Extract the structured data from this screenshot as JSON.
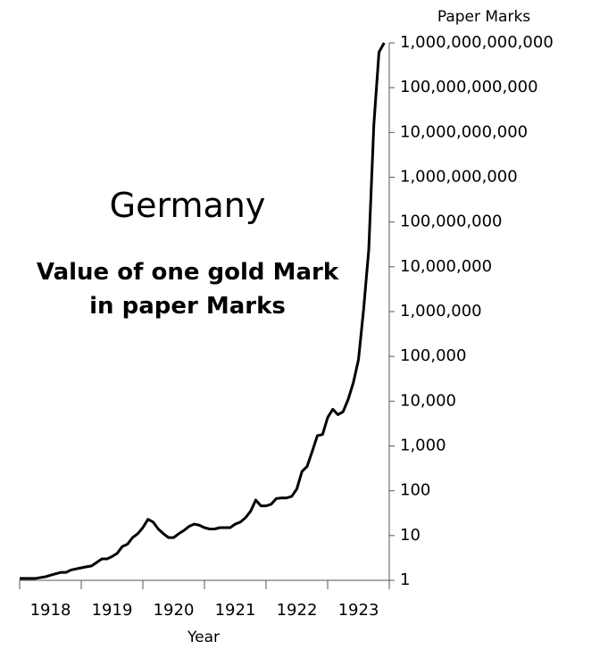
{
  "chart_data": {
    "type": "line",
    "title": "Germany",
    "subtitle": "Value of one gold Mark in paper Marks",
    "x_label": "Year",
    "y_label": "Paper Marks",
    "log_scale": true,
    "color": "#000000",
    "xlim": [
      1918,
      1924
    ],
    "xticks": [
      {
        "value": 1918.5,
        "label": "1918"
      },
      {
        "value": 1919.5,
        "label": "1919"
      },
      {
        "value": 1920.5,
        "label": "1920"
      },
      {
        "value": 1921.5,
        "label": "1921"
      },
      {
        "value": 1922.5,
        "label": "1922"
      },
      {
        "value": 1923.5,
        "label": "1923"
      }
    ],
    "ylim": [
      1,
      1000000000000
    ],
    "yticks": [
      1,
      10,
      100,
      {
        "value": 1000,
        "label": "1,000"
      },
      {
        "value": 10000,
        "label": "10,000"
      },
      {
        "value": 100000,
        "label": "100,000"
      },
      {
        "value": 1000000,
        "label": "1,000,000"
      },
      {
        "value": 10000000,
        "label": "10,000,000"
      },
      {
        "value": 100000000,
        "label": "100,000,000"
      },
      {
        "value": 1000000000,
        "label": "1,000,000,000"
      },
      {
        "value": 10000000000,
        "label": "10,000,000,000"
      },
      {
        "value": 100000000000,
        "label": "100,000,000,000"
      },
      {
        "value": 1000000000000,
        "label": "1,000,000,000,000"
      }
    ],
    "x": [
      1918,
      1918.083,
      1918.167,
      1918.25,
      1918.333,
      1918.417,
      1918.5,
      1918.583,
      1918.667,
      1918.75,
      1918.833,
      1918.917,
      1919,
      1919.083,
      1919.167,
      1919.25,
      1919.333,
      1919.417,
      1919.5,
      1919.583,
      1919.667,
      1919.75,
      1919.833,
      1919.917,
      1920,
      1920.083,
      1920.167,
      1920.25,
      1920.333,
      1920.417,
      1920.5,
      1920.583,
      1920.667,
      1920.75,
      1920.833,
      1920.917,
      1921,
      1921.083,
      1921.167,
      1921.25,
      1921.333,
      1921.417,
      1921.5,
      1921.583,
      1921.667,
      1921.75,
      1921.833,
      1921.917,
      1922,
      1922.083,
      1922.167,
      1922.25,
      1922.333,
      1922.417,
      1922.5,
      1922.583,
      1922.667,
      1922.75,
      1922.833,
      1922.917,
      1923,
      1923.083,
      1923.167,
      1923.25,
      1923.333,
      1923.417,
      1923.5,
      1923.583,
      1923.667,
      1923.75,
      1923.833,
      1923.917
    ],
    "values": [
      1.1,
      1.1,
      1.1,
      1.1,
      1.15,
      1.2,
      1.3,
      1.4,
      1.5,
      1.5,
      1.7,
      1.8,
      1.9,
      2.0,
      2.1,
      2.5,
      3.0,
      3.0,
      3.4,
      4.0,
      5.7,
      6.4,
      9.0,
      11,
      15,
      23,
      20,
      14,
      11,
      9,
      9,
      11,
      13,
      16,
      18,
      17,
      15,
      14,
      14,
      15,
      15,
      15,
      18,
      20,
      25,
      35,
      62,
      46,
      46,
      50,
      67,
      69,
      69,
      75,
      110,
      270,
      350,
      760,
      1700,
      1800,
      4300,
      6600,
      5000,
      5800,
      11000,
      26000,
      84000,
      1100000,
      24000000,
      15000000000,
      620000000000,
      1000000000000
    ]
  }
}
